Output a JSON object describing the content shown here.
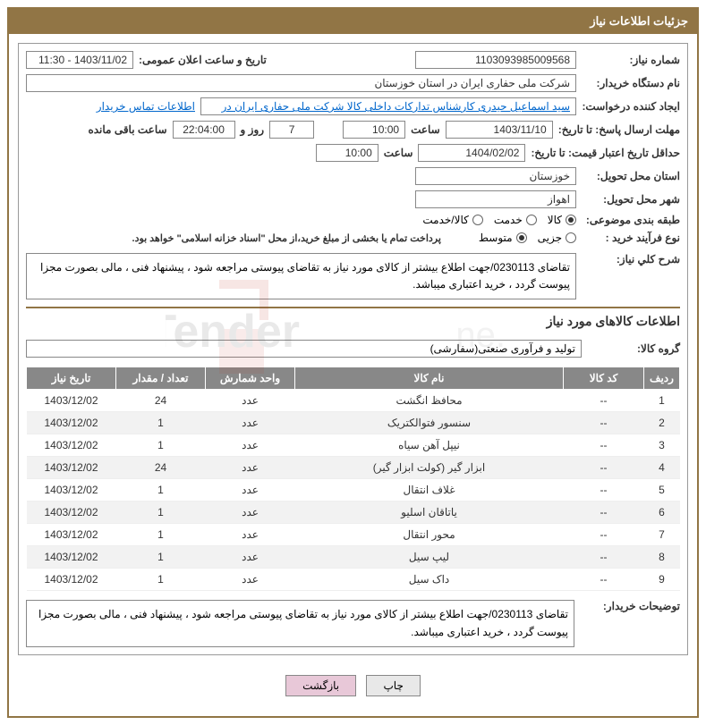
{
  "title": "جزئیات اطلاعات نیاز",
  "labels": {
    "need_number": "شماره نیاز:",
    "announce_datetime": "تاریخ و ساعت اعلان عمومی:",
    "buyer_org": "نام دستگاه خریدار:",
    "requester": "ایجاد کننده درخواست:",
    "contact_link": "اطلاعات تماس خریدار",
    "response_deadline": "مهلت ارسال پاسخ: تا تاریخ:",
    "hour": "ساعت",
    "days_and": "روز و",
    "remaining": " ساعت باقی مانده",
    "price_validity": "حداقل تاریخ اعتبار قیمت: تا تاریخ:",
    "delivery_province": "استان محل تحویل:",
    "delivery_city": "شهر محل تحویل:",
    "category": "طبقه بندی موضوعی:",
    "process_type": "نوع فرآیند خرید :",
    "payment_note": "پرداخت تمام یا بخشی از مبلغ خرید،از محل \"اسناد خزانه اسلامی\" خواهد بود.",
    "general_desc": "شرح کلي نیاز:",
    "section_goods": "اطلاعات کالاهای مورد نیاز",
    "goods_group": "گروه کالا:",
    "buyer_notes": "توضیحات خریدار:",
    "print": "چاپ",
    "back": "بازگشت"
  },
  "fields": {
    "need_number": "1103093985009568",
    "announce_datetime": "1403/11/02 - 11:30",
    "buyer_org": "شرکت ملی حفاری ایران در استان خوزستان",
    "requester": "سید اسماعیل حیدری کارشناس تدارکات داخلی کالا شرکت ملی حفاری ایران در",
    "response_date": "1403/11/10",
    "response_time": "10:00",
    "remaining_days": "7",
    "remaining_time": "22:04:00",
    "price_validity_date": "1404/02/02",
    "price_validity_time": "10:00",
    "delivery_province": "خوزستان",
    "delivery_city": "اهواز",
    "goods_group": "تولید و فرآوری صنعتی(سفارشی)",
    "general_desc": "تقاضای 0230113/جهت اطلاع بیشتر از کالای مورد نیاز به تقاضای پیوستی مراجعه شود ، پیشنهاد فنی ، مالی بصورت مجزا پیوست گردد ، خرید اعتباری میباشد.",
    "buyer_notes": "تقاضای 0230113/جهت اطلاع بیشتر از کالای مورد نیاز به تقاضای پیوستی مراجعه شود ، پیشنهاد فنی ، مالی بصورت مجزا پیوست گردد ، خرید اعتباری میباشد."
  },
  "category_options": [
    "کالا",
    "خدمت",
    "کالا/خدمت"
  ],
  "category_selected": 0,
  "process_options": [
    "جزیی",
    "متوسط"
  ],
  "process_selected": 1,
  "table": {
    "headers": [
      "ردیف",
      "کد کالا",
      "نام کالا",
      "واحد شمارش",
      "تعداد / مقدار",
      "تاریخ نیاز"
    ],
    "rows": [
      [
        "1",
        "--",
        "محافظ انگشت",
        "عدد",
        "24",
        "1403/12/02"
      ],
      [
        "2",
        "--",
        "سنسور فتوالکتریک",
        "عدد",
        "1",
        "1403/12/02"
      ],
      [
        "3",
        "--",
        "نیپل آهن سیاه",
        "عدد",
        "1",
        "1403/12/02"
      ],
      [
        "4",
        "--",
        "ابزار گیر (کولت ابزار گیر)",
        "عدد",
        "24",
        "1403/12/02"
      ],
      [
        "5",
        "--",
        "غلاف انتقال",
        "عدد",
        "1",
        "1403/12/02"
      ],
      [
        "6",
        "--",
        "یاتاقان اسلیو",
        "عدد",
        "1",
        "1403/12/02"
      ],
      [
        "7",
        "--",
        "محور انتقال",
        "عدد",
        "1",
        "1403/12/02"
      ],
      [
        "8",
        "--",
        "لیپ سیل",
        "عدد",
        "1",
        "1403/12/02"
      ],
      [
        "9",
        "--",
        "داک سیل",
        "عدد",
        "1",
        "1403/12/02"
      ]
    ]
  },
  "colors": {
    "primary": "#917545",
    "header_gray": "#888888",
    "link": "#0066cc"
  }
}
